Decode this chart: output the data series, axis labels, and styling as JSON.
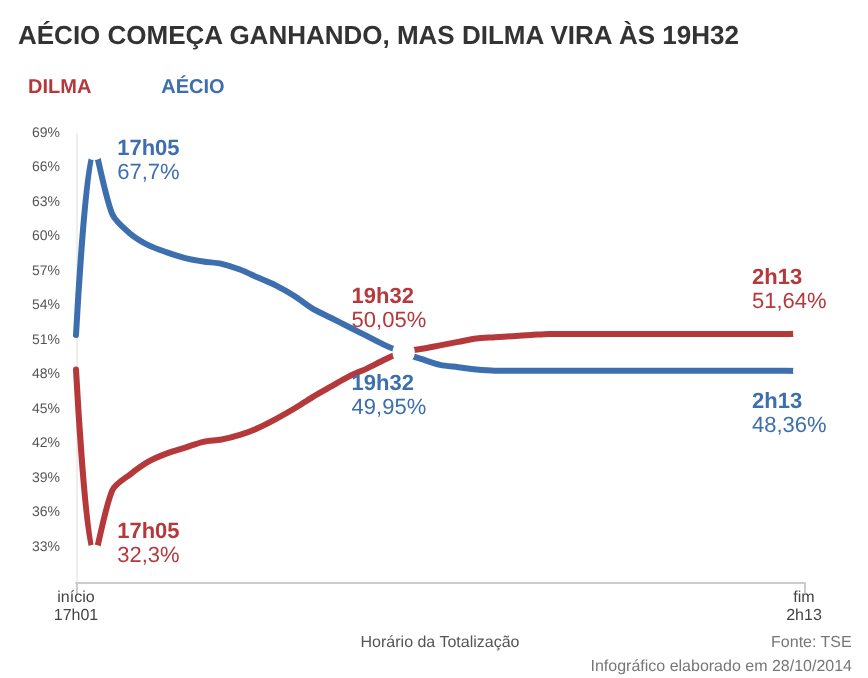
{
  "chart_data": {
    "type": "line",
    "title": "AÉCIO COMEÇA GANHANDO, MAS DILMA VIRA ÀS 19H32",
    "xlabel": "Horário da Totalização",
    "categories": [
      "início\n17h01",
      null,
      null,
      null,
      null,
      null,
      null,
      null,
      null,
      null,
      null,
      null,
      null,
      null,
      null,
      null,
      null,
      null,
      null,
      null,
      null,
      null,
      null,
      null,
      null,
      null,
      null,
      null,
      null,
      null,
      null,
      null,
      null,
      null,
      null,
      null,
      null,
      null,
      null,
      null,
      "fim\n2h13"
    ],
    "series": [
      {
        "name": "DILMA",
        "color": "#b5383b",
        "values": [
          48.5,
          32.3,
          38.0,
          39.4,
          40.5,
          41.2,
          41.7,
          42.2,
          42.4,
          42.8,
          43.4,
          44.2,
          45.1,
          46.1,
          47.0,
          47.9,
          48.6,
          49.4,
          50.05,
          50.3,
          50.6,
          50.9,
          51.2,
          51.3,
          51.4,
          51.5,
          51.6,
          51.6,
          51.6,
          51.6,
          51.6,
          51.6,
          51.6,
          51.6,
          51.6,
          51.6,
          51.6,
          51.6,
          51.6,
          51.6,
          51.64
        ],
        "value_labels": [
          null,
          "17h05\n32,3%",
          null,
          null,
          null,
          null,
          null,
          null,
          null,
          null,
          null,
          null,
          null,
          null,
          null,
          null,
          null,
          null,
          "19h32\n50,05%",
          null,
          null,
          null,
          null,
          null,
          null,
          null,
          null,
          null,
          null,
          null,
          null,
          null,
          null,
          null,
          null,
          null,
          null,
          null,
          null,
          null,
          "2h13\n51,64%"
        ]
      },
      {
        "name": "AÉCIO",
        "color": "#3d6fae",
        "values": [
          51.5,
          67.7,
          62.0,
          60.3,
          59.3,
          58.7,
          58.2,
          57.9,
          57.7,
          57.2,
          56.5,
          55.8,
          54.9,
          53.8,
          53.0,
          52.2,
          51.4,
          50.6,
          49.95,
          49.4,
          48.9,
          48.7,
          48.5,
          48.4,
          48.4,
          48.4,
          48.4,
          48.4,
          48.4,
          48.4,
          48.4,
          48.4,
          48.4,
          48.4,
          48.4,
          48.4,
          48.4,
          48.4,
          48.4,
          48.4,
          48.36
        ],
        "value_labels": [
          null,
          "17h05\n67,7%",
          null,
          null,
          null,
          null,
          null,
          null,
          null,
          null,
          null,
          null,
          null,
          null,
          null,
          null,
          null,
          null,
          "19h32\n49,95%",
          null,
          null,
          null,
          null,
          null,
          null,
          null,
          null,
          null,
          null,
          null,
          null,
          null,
          null,
          null,
          null,
          null,
          null,
          null,
          null,
          null,
          "2h13\n48,36%"
        ]
      }
    ],
    "ylim": [
      30,
      69
    ],
    "yticks": [
      {
        "value": 33,
        "label": "33%"
      },
      {
        "value": 36,
        "label": "36%"
      },
      {
        "value": 39,
        "label": "39%"
      },
      {
        "value": 42,
        "label": "42%"
      },
      {
        "value": 45,
        "label": "45%"
      },
      {
        "value": 48,
        "label": "48%"
      },
      {
        "value": 51,
        "label": "51%"
      },
      {
        "value": 54,
        "label": "54%"
      },
      {
        "value": 57,
        "label": "57%"
      },
      {
        "value": 60,
        "label": "60%"
      },
      {
        "value": 63,
        "label": "63%"
      },
      {
        "value": 66,
        "label": "66%"
      },
      {
        "value": 69,
        "label": "69%"
      }
    ],
    "grid": false,
    "legend": "top left",
    "annotations": [
      "Fonte: TSE",
      "Infográfico elaborado em 28/10/2014"
    ]
  }
}
